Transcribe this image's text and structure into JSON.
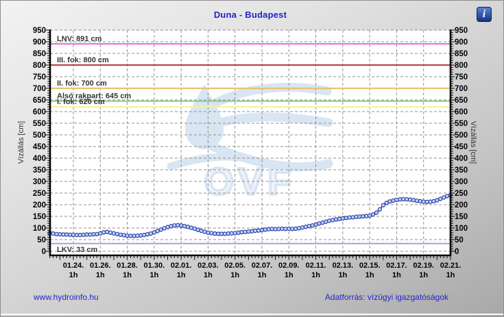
{
  "toolbar": {
    "info_glyph": "i"
  },
  "footer": {
    "site_link": "www.hydroinfo.hu",
    "data_source": "Adatforrás: vízügyi igazgatóságok"
  },
  "watermark": {
    "text": "OVF"
  },
  "colors": {
    "title": "#2222cc",
    "footer_link": "#2323cc",
    "grid": "#8f8f8f",
    "axis": "#000000",
    "watermark": "#cfdff0"
  },
  "chart_data": {
    "type": "line",
    "title": "Duna - Budapest",
    "y_axis": {
      "label": "Vízállás [cm]",
      "min": 0,
      "max": 950,
      "tick_step": 50,
      "minor_step": 10,
      "unit": "cm"
    },
    "x_axis": {
      "tick_labels": [
        "01.24.",
        "01.26.",
        "01.28.",
        "01.30.",
        "02.01.",
        "02.03.",
        "02.05.",
        "02.07.",
        "02.09.",
        "02.11.",
        "02.13.",
        "02.15.",
        "02.17.",
        "02.19.",
        "02.21."
      ],
      "sub_label": "1h",
      "tick_interval_days": 2,
      "minor_step_days": 0.25
    },
    "reference_lines": [
      {
        "label": "LNV: 891 cm",
        "value": 891,
        "color": "#ea6fea",
        "label_side": "above"
      },
      {
        "label": "III. fok: 800 cm",
        "value": 800,
        "color": "#c24545",
        "label_side": "above"
      },
      {
        "label": "II. fok: 700 cm",
        "value": 700,
        "color": "#e7c36e",
        "label_side": "above"
      },
      {
        "label": "Alsó rakpart: 645 cm",
        "value": 645,
        "color": "#92cd92",
        "label_side": "above"
      },
      {
        "label": "I. fok: 620 cm",
        "value": 620,
        "color": "#f3f39b",
        "label_side": "above"
      },
      {
        "label": "LKV: 33 cm",
        "value": 33,
        "color": "#a9a9ec",
        "label_side": "below"
      }
    ],
    "series": [
      {
        "name": "Vízállás Duna Budapest",
        "marker_stroke": "#1a34a0",
        "marker_fill": "#c0d2f4",
        "line_color": "#1b39a6",
        "start_offset_days": -1.75,
        "step_days": 0.25,
        "values": [
          79,
          76,
          74,
          73,
          72,
          72,
          71,
          71,
          70,
          70,
          71,
          72,
          72,
          73,
          74,
          77,
          81,
          83,
          80,
          77,
          74,
          71,
          69,
          67,
          66,
          66,
          67,
          68,
          70,
          73,
          76,
          81,
          87,
          93,
          99,
          104,
          108,
          111,
          112,
          111,
          108,
          105,
          101,
          97,
          92,
          88,
          84,
          80,
          78,
          76,
          75,
          75,
          75,
          76,
          77,
          78,
          80,
          82,
          83,
          85,
          86,
          88,
          89,
          91,
          93,
          95,
          96,
          95,
          96,
          97,
          96,
          97,
          96,
          97,
          99,
          102,
          105,
          108,
          111,
          115,
          119,
          123,
          127,
          131,
          134,
          137,
          139,
          141,
          143,
          145,
          146,
          148,
          149,
          150,
          151,
          153,
          158,
          166,
          180,
          198,
          208,
          214,
          218,
          221,
          223,
          224,
          223,
          222,
          220,
          217,
          215,
          213,
          212,
          213,
          215,
          219,
          225,
          231,
          237,
          241
        ]
      }
    ]
  }
}
